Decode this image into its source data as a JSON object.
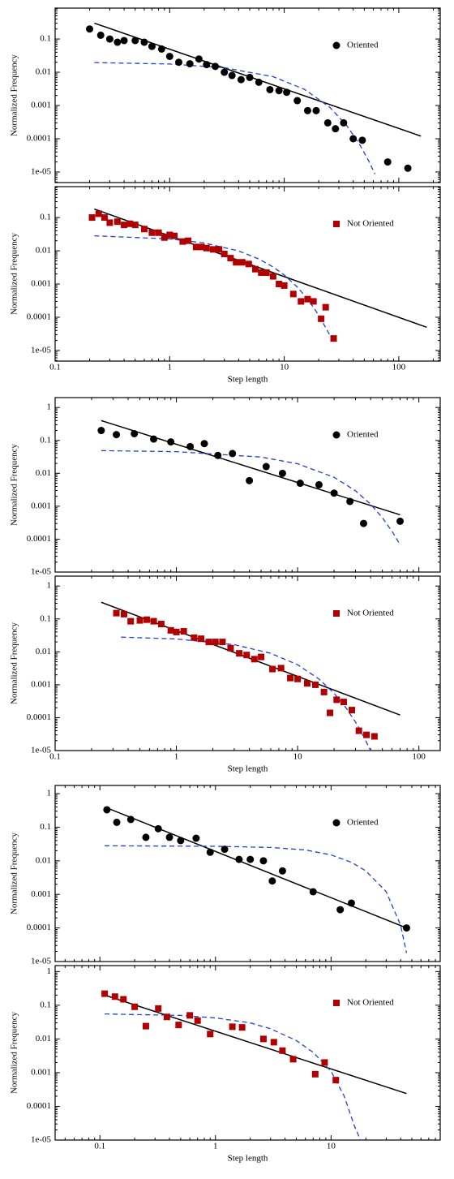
{
  "chart_data": [
    {
      "type": "scatter",
      "ylabel": "Normalized Frequency",
      "xscale": "log",
      "yscale": "log",
      "legend": "upper right",
      "xlim": [
        0.1,
        230
      ],
      "ylim": [
        4.8e-06,
        0.85
      ],
      "xticks": [
        0.1,
        1,
        10,
        100
      ],
      "show_xtick_labels": false,
      "yticks": [
        {
          "value": 1e-05,
          "label": "1e-05"
        },
        0.0001,
        0.001,
        0.01,
        0.1
      ],
      "series": [
        {
          "name": "Oriented",
          "color": "#000000",
          "marker": "circle",
          "x": [
            0.2,
            0.25,
            0.3,
            0.35,
            0.4,
            0.5,
            0.6,
            0.7,
            0.85,
            1.0,
            1.2,
            1.5,
            1.8,
            2.1,
            2.5,
            3,
            3.5,
            4.2,
            5,
            6,
            7.5,
            9,
            10.5,
            13,
            16,
            19,
            24,
            28,
            33,
            40,
            48,
            80,
            120
          ],
          "values": [
            0.2,
            0.13,
            0.1,
            0.08,
            0.09,
            0.09,
            0.08,
            0.06,
            0.05,
            0.03,
            0.02,
            0.018,
            0.025,
            0.017,
            0.015,
            0.01,
            0.008,
            0.006,
            0.007,
            0.005,
            0.003,
            0.0028,
            0.0025,
            0.0014,
            0.0007,
            0.0007,
            0.0003,
            0.0002,
            0.0003,
            0.0001,
            9e-05,
            2e-05,
            1.3e-05
          ]
        }
      ],
      "fits": [
        {
          "color": "#000000",
          "dashed": false,
          "x": [
            0.22,
            156
          ],
          "values": [
            0.3,
            0.00012
          ]
        },
        {
          "color": "#1f3fd8",
          "dashed": true,
          "x": [
            0.22,
            1,
            3,
            8,
            15,
            25,
            35,
            45,
            55,
            62
          ],
          "values": [
            0.0195,
            0.0177,
            0.0137,
            0.00736,
            0.00307,
            0.00088,
            0.000252,
            7.2e-05,
            2.07e-05,
            8.6e-06
          ]
        }
      ]
    },
    {
      "type": "scatter",
      "ylabel": "Normalized Frequency",
      "xlabel": "Step length",
      "xscale": "log",
      "yscale": "log",
      "legend": "upper right",
      "xlim": [
        0.1,
        230
      ],
      "ylim": [
        4.8e-06,
        0.85
      ],
      "xticks": [
        0.1,
        1,
        10,
        100
      ],
      "show_xtick_labels": true,
      "yticks": [
        {
          "value": 1e-05,
          "label": "1e-05"
        },
        0.0001,
        0.001,
        0.01,
        0.1
      ],
      "series": [
        {
          "name": "Not Oriented",
          "color": "#b00000",
          "marker": "square",
          "x": [
            0.21,
            0.24,
            0.27,
            0.3,
            0.35,
            0.4,
            0.45,
            0.5,
            0.6,
            0.7,
            0.8,
            0.9,
            1.0,
            1.1,
            1.3,
            1.45,
            1.7,
            1.9,
            2.1,
            2.4,
            2.7,
            3.0,
            3.4,
            3.8,
            4.3,
            4.9,
            5.6,
            6.3,
            7,
            8,
            9,
            10,
            12,
            14,
            16,
            18,
            21,
            23,
            27
          ],
          "values": [
            0.1,
            0.13,
            0.1,
            0.07,
            0.075,
            0.06,
            0.065,
            0.06,
            0.045,
            0.035,
            0.035,
            0.025,
            0.03,
            0.028,
            0.019,
            0.02,
            0.013,
            0.013,
            0.012,
            0.011,
            0.011,
            0.008,
            0.006,
            0.0045,
            0.0045,
            0.004,
            0.0028,
            0.0022,
            0.0022,
            0.0017,
            0.001,
            0.0009,
            0.0005,
            0.0003,
            0.00035,
            0.0003,
            9e-05,
            0.0002,
            2.3e-05
          ]
        }
      ],
      "fits": [
        {
          "color": "#000000",
          "dashed": false,
          "x": [
            0.22,
            175
          ],
          "values": [
            0.18,
            5e-05
          ]
        },
        {
          "color": "#1f3fd8",
          "dashed": true,
          "x": [
            0.22,
            1,
            2,
            4,
            6,
            8,
            10,
            13,
            16,
            20,
            25
          ],
          "values": [
            0.0282,
            0.0227,
            0.0172,
            0.00987,
            0.00567,
            0.00325,
            0.00187,
            0.000811,
            0.000352,
            0.000116,
            2.9e-05
          ]
        }
      ]
    },
    {
      "type": "scatter",
      "ylabel": "Normalized Frequency",
      "xscale": "log",
      "yscale": "log",
      "legend": "upper right",
      "xlim": [
        0.1,
        150
      ],
      "ylim": [
        1e-05,
        2
      ],
      "xticks": [
        0.1,
        1,
        10,
        100
      ],
      "show_xtick_labels": false,
      "yticks": [
        {
          "value": 1e-05,
          "label": "1e-05"
        },
        0.0001,
        0.001,
        0.01,
        0.1,
        1
      ],
      "series": [
        {
          "name": "Oriented",
          "color": "#000000",
          "marker": "circle",
          "x": [
            0.24,
            0.32,
            0.45,
            0.65,
            0.9,
            1.3,
            1.7,
            2.2,
            2.9,
            4.0,
            5.5,
            7.5,
            10.5,
            15,
            20,
            27,
            35,
            70
          ],
          "values": [
            0.2,
            0.15,
            0.16,
            0.11,
            0.09,
            0.065,
            0.08,
            0.035,
            0.04,
            0.006,
            0.016,
            0.01,
            0.005,
            0.0045,
            0.0025,
            0.0014,
            0.0003,
            0.00035
          ]
        }
      ],
      "fits": [
        {
          "color": "#000000",
          "dashed": false,
          "x": [
            0.24,
            70
          ],
          "values": [
            0.4,
            0.00055
          ]
        },
        {
          "color": "#1f3fd8",
          "dashed": true,
          "x": [
            0.24,
            1,
            5,
            10,
            20,
            30,
            40,
            50,
            60,
            70
          ],
          "values": [
            0.0489,
            0.0455,
            0.0312,
            0.0195,
            0.00758,
            0.00295,
            0.00115,
            0.000447,
            0.000174,
            6.8e-05
          ]
        }
      ]
    },
    {
      "type": "scatter",
      "ylabel": "Normalized Frequency",
      "xlabel": "Step length",
      "xscale": "log",
      "yscale": "log",
      "legend": "upper right",
      "xlim": [
        0.1,
        150
      ],
      "ylim": [
        1e-05,
        2
      ],
      "xticks": [
        0.1,
        1,
        10,
        100
      ],
      "show_xtick_labels": true,
      "yticks": [
        {
          "value": 1e-05,
          "label": "1e-05"
        },
        0.0001,
        0.001,
        0.01,
        0.1,
        1
      ],
      "series": [
        {
          "name": "Not Oriented",
          "color": "#b00000",
          "marker": "square",
          "x": [
            0.32,
            0.37,
            0.42,
            0.5,
            0.57,
            0.65,
            0.75,
            0.9,
            1.0,
            1.15,
            1.4,
            1.6,
            1.85,
            2.1,
            2.4,
            2.8,
            3.3,
            3.8,
            4.4,
            5,
            6.2,
            7.3,
            8.7,
            10,
            12,
            14,
            16.5,
            18.5,
            21,
            24,
            28,
            32,
            37,
            43
          ],
          "values": [
            0.15,
            0.14,
            0.085,
            0.09,
            0.095,
            0.085,
            0.07,
            0.045,
            0.04,
            0.042,
            0.027,
            0.025,
            0.02,
            0.02,
            0.02,
            0.013,
            0.009,
            0.008,
            0.006,
            0.007,
            0.003,
            0.0032,
            0.0016,
            0.0015,
            0.0011,
            0.001,
            0.0006,
            0.00014,
            0.00035,
            0.0003,
            0.00017,
            4e-05,
            3e-05,
            2.7e-05
          ]
        }
      ],
      "fits": [
        {
          "color": "#000000",
          "dashed": false,
          "x": [
            0.24,
            70
          ],
          "values": [
            0.32,
            0.00012
          ]
        },
        {
          "color": "#1f3fd8",
          "dashed": true,
          "x": [
            0.35,
            1,
            3,
            6,
            10,
            15,
            20,
            25,
            30,
            35,
            40
          ],
          "values": [
            0.028,
            0.0246,
            0.0165,
            0.00904,
            0.00406,
            0.00149,
            0.00055,
            0.000202,
            7.4e-05,
            2.7e-05,
            1e-05
          ]
        }
      ]
    },
    {
      "type": "scatter",
      "ylabel": "Normalized Frequency",
      "xscale": "log",
      "yscale": "log",
      "legend": "upper right",
      "xlim": [
        0.041,
        88
      ],
      "ylim": [
        1e-05,
        1.75
      ],
      "xticks": [
        0.1,
        1,
        10
      ],
      "show_xtick_labels": false,
      "yticks": [
        {
          "value": 1e-05,
          "label": "1e-05"
        },
        0.0001,
        0.001,
        0.01,
        0.1,
        1
      ],
      "series": [
        {
          "name": "Oriented",
          "color": "#000000",
          "marker": "circle",
          "x": [
            0.115,
            0.14,
            0.185,
            0.25,
            0.32,
            0.4,
            0.5,
            0.68,
            0.9,
            1.2,
            1.6,
            2.0,
            2.6,
            3.1,
            3.8,
            7.0,
            12,
            15,
            45
          ],
          "values": [
            0.33,
            0.14,
            0.17,
            0.05,
            0.09,
            0.05,
            0.04,
            0.047,
            0.018,
            0.022,
            0.011,
            0.011,
            0.01,
            0.0025,
            0.005,
            0.0012,
            0.00035,
            0.00055,
            0.0001
          ]
        }
      ],
      "fits": [
        {
          "color": "#000000",
          "dashed": false,
          "x": [
            0.11,
            45
          ],
          "values": [
            0.4,
            0.0001
          ]
        },
        {
          "color": "#1f3fd8",
          "dashed": true,
          "x": [
            0.11,
            1,
            3,
            6,
            10,
            15,
            20,
            30,
            40,
            45
          ],
          "values": [
            0.028,
            0.027,
            0.025,
            0.021,
            0.015,
            0.009,
            0.005,
            0.0012,
            0.00012,
            1.8e-05
          ]
        }
      ]
    },
    {
      "type": "scatter",
      "ylabel": "Normalized Frequency",
      "xlabel": "Step length",
      "xscale": "log",
      "yscale": "log",
      "legend": "upper right",
      "xlim": [
        0.041,
        88
      ],
      "ylim": [
        1e-05,
        1.5
      ],
      "xticks": [
        0.1,
        1,
        10
      ],
      "show_xtick_labels": true,
      "yticks": [
        {
          "value": 1e-05,
          "label": "1e-05"
        },
        0.0001,
        0.001,
        0.01,
        0.1,
        1
      ],
      "series": [
        {
          "name": "Not Oriented",
          "color": "#b00000",
          "marker": "square",
          "x": [
            0.11,
            0.135,
            0.16,
            0.2,
            0.25,
            0.32,
            0.38,
            0.48,
            0.6,
            0.7,
            0.9,
            1.4,
            1.7,
            2.6,
            3.2,
            3.8,
            4.7,
            7.3,
            8.8,
            11
          ],
          "values": [
            0.22,
            0.18,
            0.15,
            0.09,
            0.024,
            0.08,
            0.045,
            0.026,
            0.05,
            0.035,
            0.014,
            0.023,
            0.022,
            0.01,
            0.008,
            0.0045,
            0.0025,
            0.0009,
            0.002,
            0.0006
          ]
        }
      ],
      "fits": [
        {
          "color": "#000000",
          "dashed": false,
          "x": [
            0.11,
            45
          ],
          "values": [
            0.2,
            0.00024
          ]
        },
        {
          "color": "#1f3fd8",
          "dashed": true,
          "x": [
            0.11,
            0.5,
            1,
            2,
            3,
            5,
            7,
            10,
            13,
            16,
            18
          ],
          "values": [
            0.055,
            0.05,
            0.042,
            0.03,
            0.02,
            0.009,
            0.004,
            0.0011,
            0.0002,
            2.5e-05,
            1e-05
          ]
        }
      ]
    }
  ]
}
